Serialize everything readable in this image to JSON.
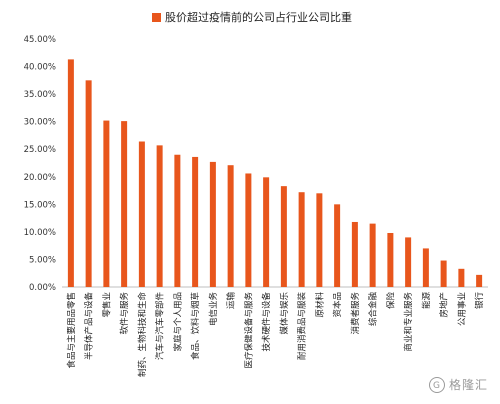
{
  "chart_data": {
    "type": "bar",
    "title": "",
    "xlabel": "",
    "ylabel": "",
    "legend": {
      "entry": "股价超过疫情前的公司占行业公司比重",
      "position": "top-center"
    },
    "ylim": [
      0,
      45
    ],
    "y_tick_step": 5,
    "y_tick_format": "percent-2dp",
    "grid": false,
    "categories": [
      "食品与主要用品零售",
      "半导体产品与设备",
      "零售业",
      "软件与服务",
      "制药、生物科技和生命",
      "汽车与汽车零部件",
      "家庭与个人用品",
      "食品、饮料与烟草",
      "电信业务",
      "运输",
      "医疗保健设备与服务",
      "技术硬件与设备",
      "媒体与娱乐",
      "耐用消费品与服装",
      "原材料",
      "资本品",
      "消费者服务",
      "综合金融",
      "保险",
      "商业和专业服务",
      "能源",
      "房地产",
      "公用事业",
      "银行"
    ],
    "values": [
      41.3,
      37.5,
      30.2,
      30.1,
      26.4,
      25.7,
      24.0,
      23.6,
      22.7,
      22.1,
      20.6,
      19.9,
      18.3,
      17.2,
      17.0,
      15.0,
      11.8,
      11.5,
      9.8,
      9.0,
      7.0,
      4.8,
      3.3,
      2.2
    ],
    "bar_color": "#E8561C"
  },
  "watermark": {
    "badge": "G",
    "text": "格隆汇"
  }
}
